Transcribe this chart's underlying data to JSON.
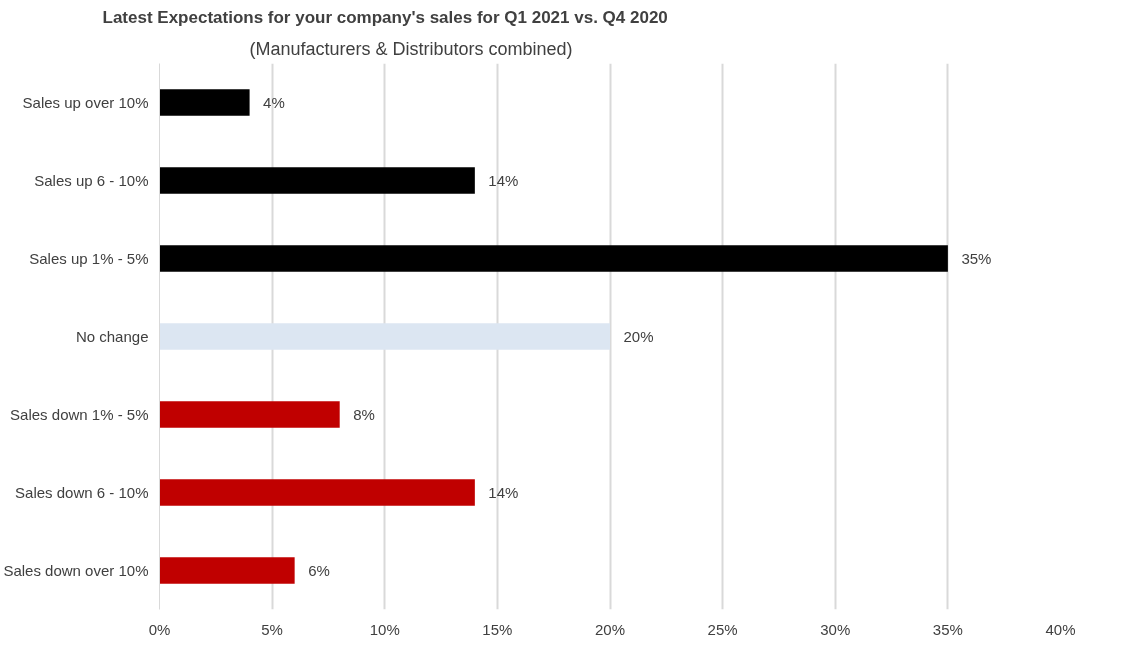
{
  "chart_data": {
    "type": "bar",
    "orientation": "horizontal",
    "title": "Latest Expectations for your company's sales for Q1 2021 vs. Q4 2020",
    "subtitle": "(Manufacturers & Distributors combined)",
    "categories": [
      "Sales up over 10%",
      "Sales up 6 - 10%",
      "Sales up 1% - 5%",
      "No change",
      "Sales down 1% - 5%",
      "Sales down 6 - 10%",
      "Sales down over 10%"
    ],
    "values": [
      4,
      14,
      35,
      20,
      8,
      14,
      6
    ],
    "colors": [
      "#000000",
      "#000000",
      "#000000",
      "#dce6f2",
      "#c00000",
      "#c00000",
      "#c00000"
    ],
    "value_labels": [
      "4%",
      "14%",
      "35%",
      "20%",
      "8%",
      "14%",
      "6%"
    ],
    "xlim": [
      0,
      40
    ],
    "xticks": [
      {
        "value": 0,
        "label": "0%"
      },
      {
        "value": 5,
        "label": "5%"
      },
      {
        "value": 10,
        "label": "10%"
      },
      {
        "value": 15,
        "label": "15%"
      },
      {
        "value": 20,
        "label": "20%"
      },
      {
        "value": 25,
        "label": "25%"
      },
      {
        "value": 30,
        "label": "30%"
      },
      {
        "value": 35,
        "label": "35%"
      },
      {
        "value": 40,
        "label": "40%"
      }
    ],
    "grid": "x"
  }
}
